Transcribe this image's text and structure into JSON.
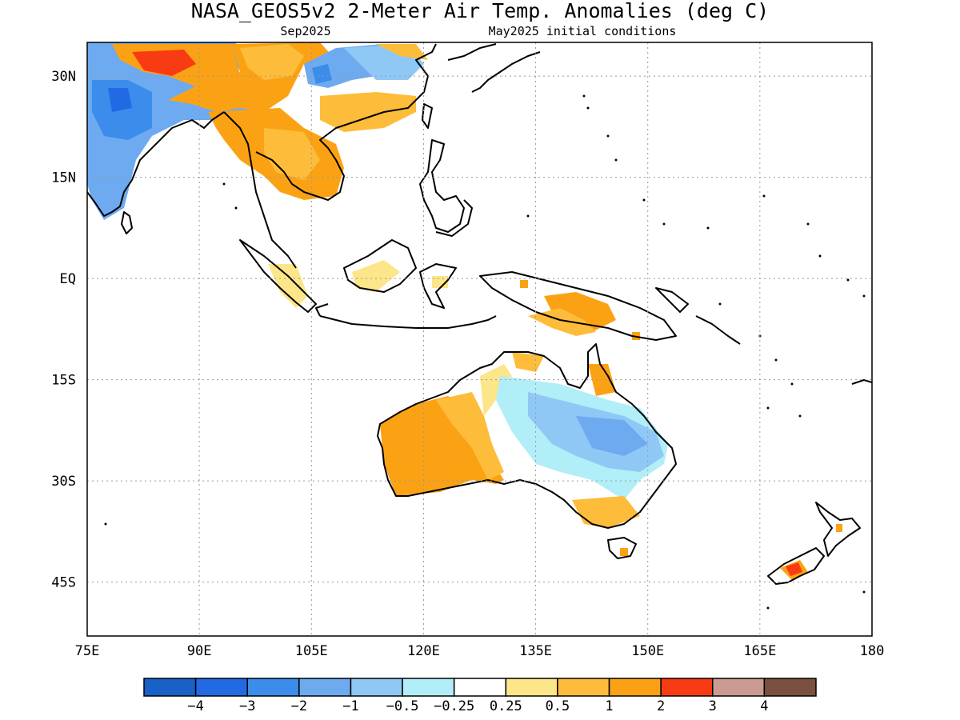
{
  "title": "NASA_GEOS5v2 2-Meter Air Temp. Anomalies (deg C)",
  "subtitle_left": "Sep2025",
  "subtitle_right": "May2025 initial conditions",
  "map": {
    "lon_range": [
      75,
      180
    ],
    "lat_range": [
      -53,
      35
    ],
    "grid_lines": "dotted",
    "lon_ticks": [
      {
        "value": 75,
        "label": "75E"
      },
      {
        "value": 90,
        "label": "90E"
      },
      {
        "value": 105,
        "label": "105E"
      },
      {
        "value": 120,
        "label": "120E"
      },
      {
        "value": 135,
        "label": "135E"
      },
      {
        "value": 150,
        "label": "150E"
      },
      {
        "value": 165,
        "label": "165E"
      },
      {
        "value": 180,
        "label": "180"
      }
    ],
    "lat_ticks": [
      {
        "value": 30,
        "label": "30N"
      },
      {
        "value": 15,
        "label": "15N"
      },
      {
        "value": 0,
        "label": "EQ"
      },
      {
        "value": -15,
        "label": "15S"
      },
      {
        "value": -30,
        "label": "30S"
      },
      {
        "value": -45,
        "label": "45S"
      }
    ]
  },
  "colorbar": {
    "colors": [
      "#1861c8",
      "#226ae3",
      "#3b8ceb",
      "#6eaaf0",
      "#90c8f5",
      "#b1eef8",
      "#ffffff",
      "#fde58a",
      "#fdbd3a",
      "#fba214",
      "#f93b13",
      "#c99b91",
      "#7b5040"
    ],
    "labels": [
      "−4",
      "−3",
      "−2",
      "−1",
      "−0.5",
      "−0.25",
      "0.25",
      "0.5",
      "1",
      "2",
      "3",
      "4"
    ]
  }
}
